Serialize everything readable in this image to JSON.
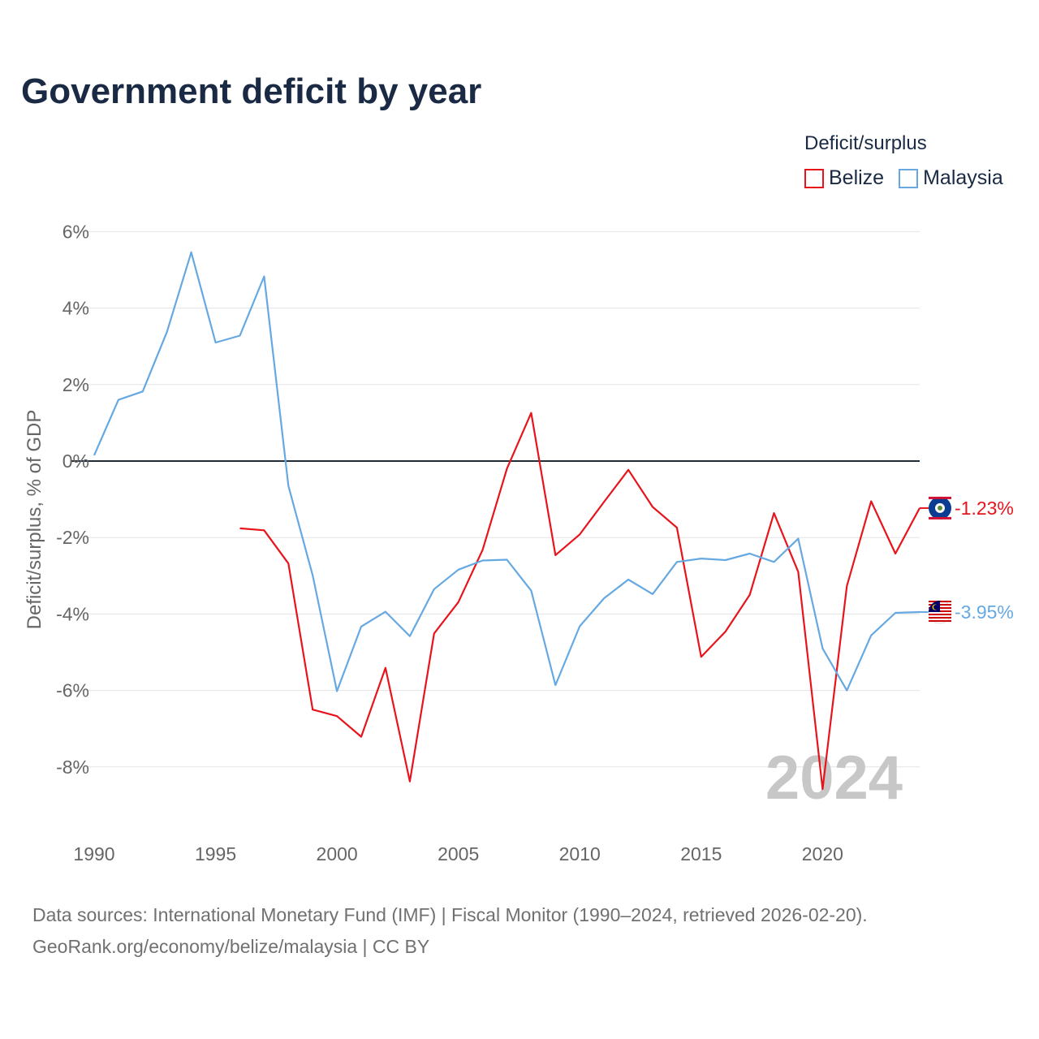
{
  "chart_data": {
    "type": "line",
    "title": "Government deficit by year",
    "ylabel": "Deficit/surplus, % of GDP",
    "xlabel": "",
    "xlim": [
      1990,
      2024
    ],
    "ylim": [
      -10,
      6.5
    ],
    "yticks": [
      6,
      4,
      2,
      0,
      -2,
      -4,
      -6,
      -8
    ],
    "ytick_labels": [
      "6%",
      "4%",
      "2%",
      "0%",
      "-2%",
      "-4%",
      "-6%",
      "-8%"
    ],
    "xticks": [
      1990,
      1995,
      2000,
      2005,
      2010,
      2015,
      2020
    ],
    "xtick_labels": [
      "1990",
      "1995",
      "2000",
      "2005",
      "2010",
      "2015",
      "2020"
    ],
    "legend_title": "Deficit/surplus",
    "legend_position": "top-right",
    "watermark_year": "2024",
    "series": [
      {
        "name": "Belize",
        "color": "#e8141c",
        "end_label": "-1.23%",
        "flag": "belize-flag-icon",
        "x": [
          1996,
          1997,
          1998,
          1999,
          2000,
          2001,
          2002,
          2003,
          2004,
          2005,
          2006,
          2007,
          2008,
          2009,
          2010,
          2011,
          2012,
          2013,
          2014,
          2015,
          2016,
          2017,
          2018,
          2019,
          2020,
          2021,
          2022,
          2023,
          2024
        ],
        "values": [
          -1.76,
          -1.81,
          -2.68,
          -6.5,
          -6.67,
          -7.21,
          -5.41,
          -8.38,
          -4.51,
          -3.69,
          -2.32,
          -0.2,
          1.26,
          -2.46,
          -1.92,
          -1.07,
          -0.23,
          -1.2,
          -1.74,
          -5.12,
          -4.46,
          -3.5,
          -1.36,
          -2.9,
          -8.58,
          -3.27,
          -1.05,
          -2.42,
          -1.23
        ]
      },
      {
        "name": "Malaysia",
        "color": "#66a9e2",
        "end_label": "-3.95%",
        "flag": "malaysia-flag-icon",
        "x": [
          1990,
          1991,
          1992,
          1993,
          1994,
          1995,
          1996,
          1997,
          1998,
          1999,
          2000,
          2001,
          2002,
          2003,
          2004,
          2005,
          2006,
          2007,
          2008,
          2009,
          2010,
          2011,
          2012,
          2013,
          2014,
          2015,
          2016,
          2017,
          2018,
          2019,
          2020,
          2021,
          2022,
          2023,
          2024
        ],
        "values": [
          0.15,
          1.6,
          1.82,
          3.38,
          5.46,
          3.1,
          3.28,
          4.83,
          -0.65,
          -2.99,
          -6.02,
          -4.33,
          -3.94,
          -4.58,
          -3.35,
          -2.84,
          -2.6,
          -2.58,
          -3.39,
          -5.86,
          -4.32,
          -3.59,
          -3.1,
          -3.48,
          -2.64,
          -2.55,
          -2.59,
          -2.42,
          -2.64,
          -2.03,
          -4.9,
          -6.0,
          -4.56,
          -3.97,
          -3.95
        ]
      }
    ]
  },
  "footer": {
    "sources": "Data sources: International Monetary Fund (IMF) | Fiscal Monitor (1990–2024, retrieved 2026-02-20).",
    "credit": "GeoRank.org/economy/belize/malaysia | CC BY"
  }
}
